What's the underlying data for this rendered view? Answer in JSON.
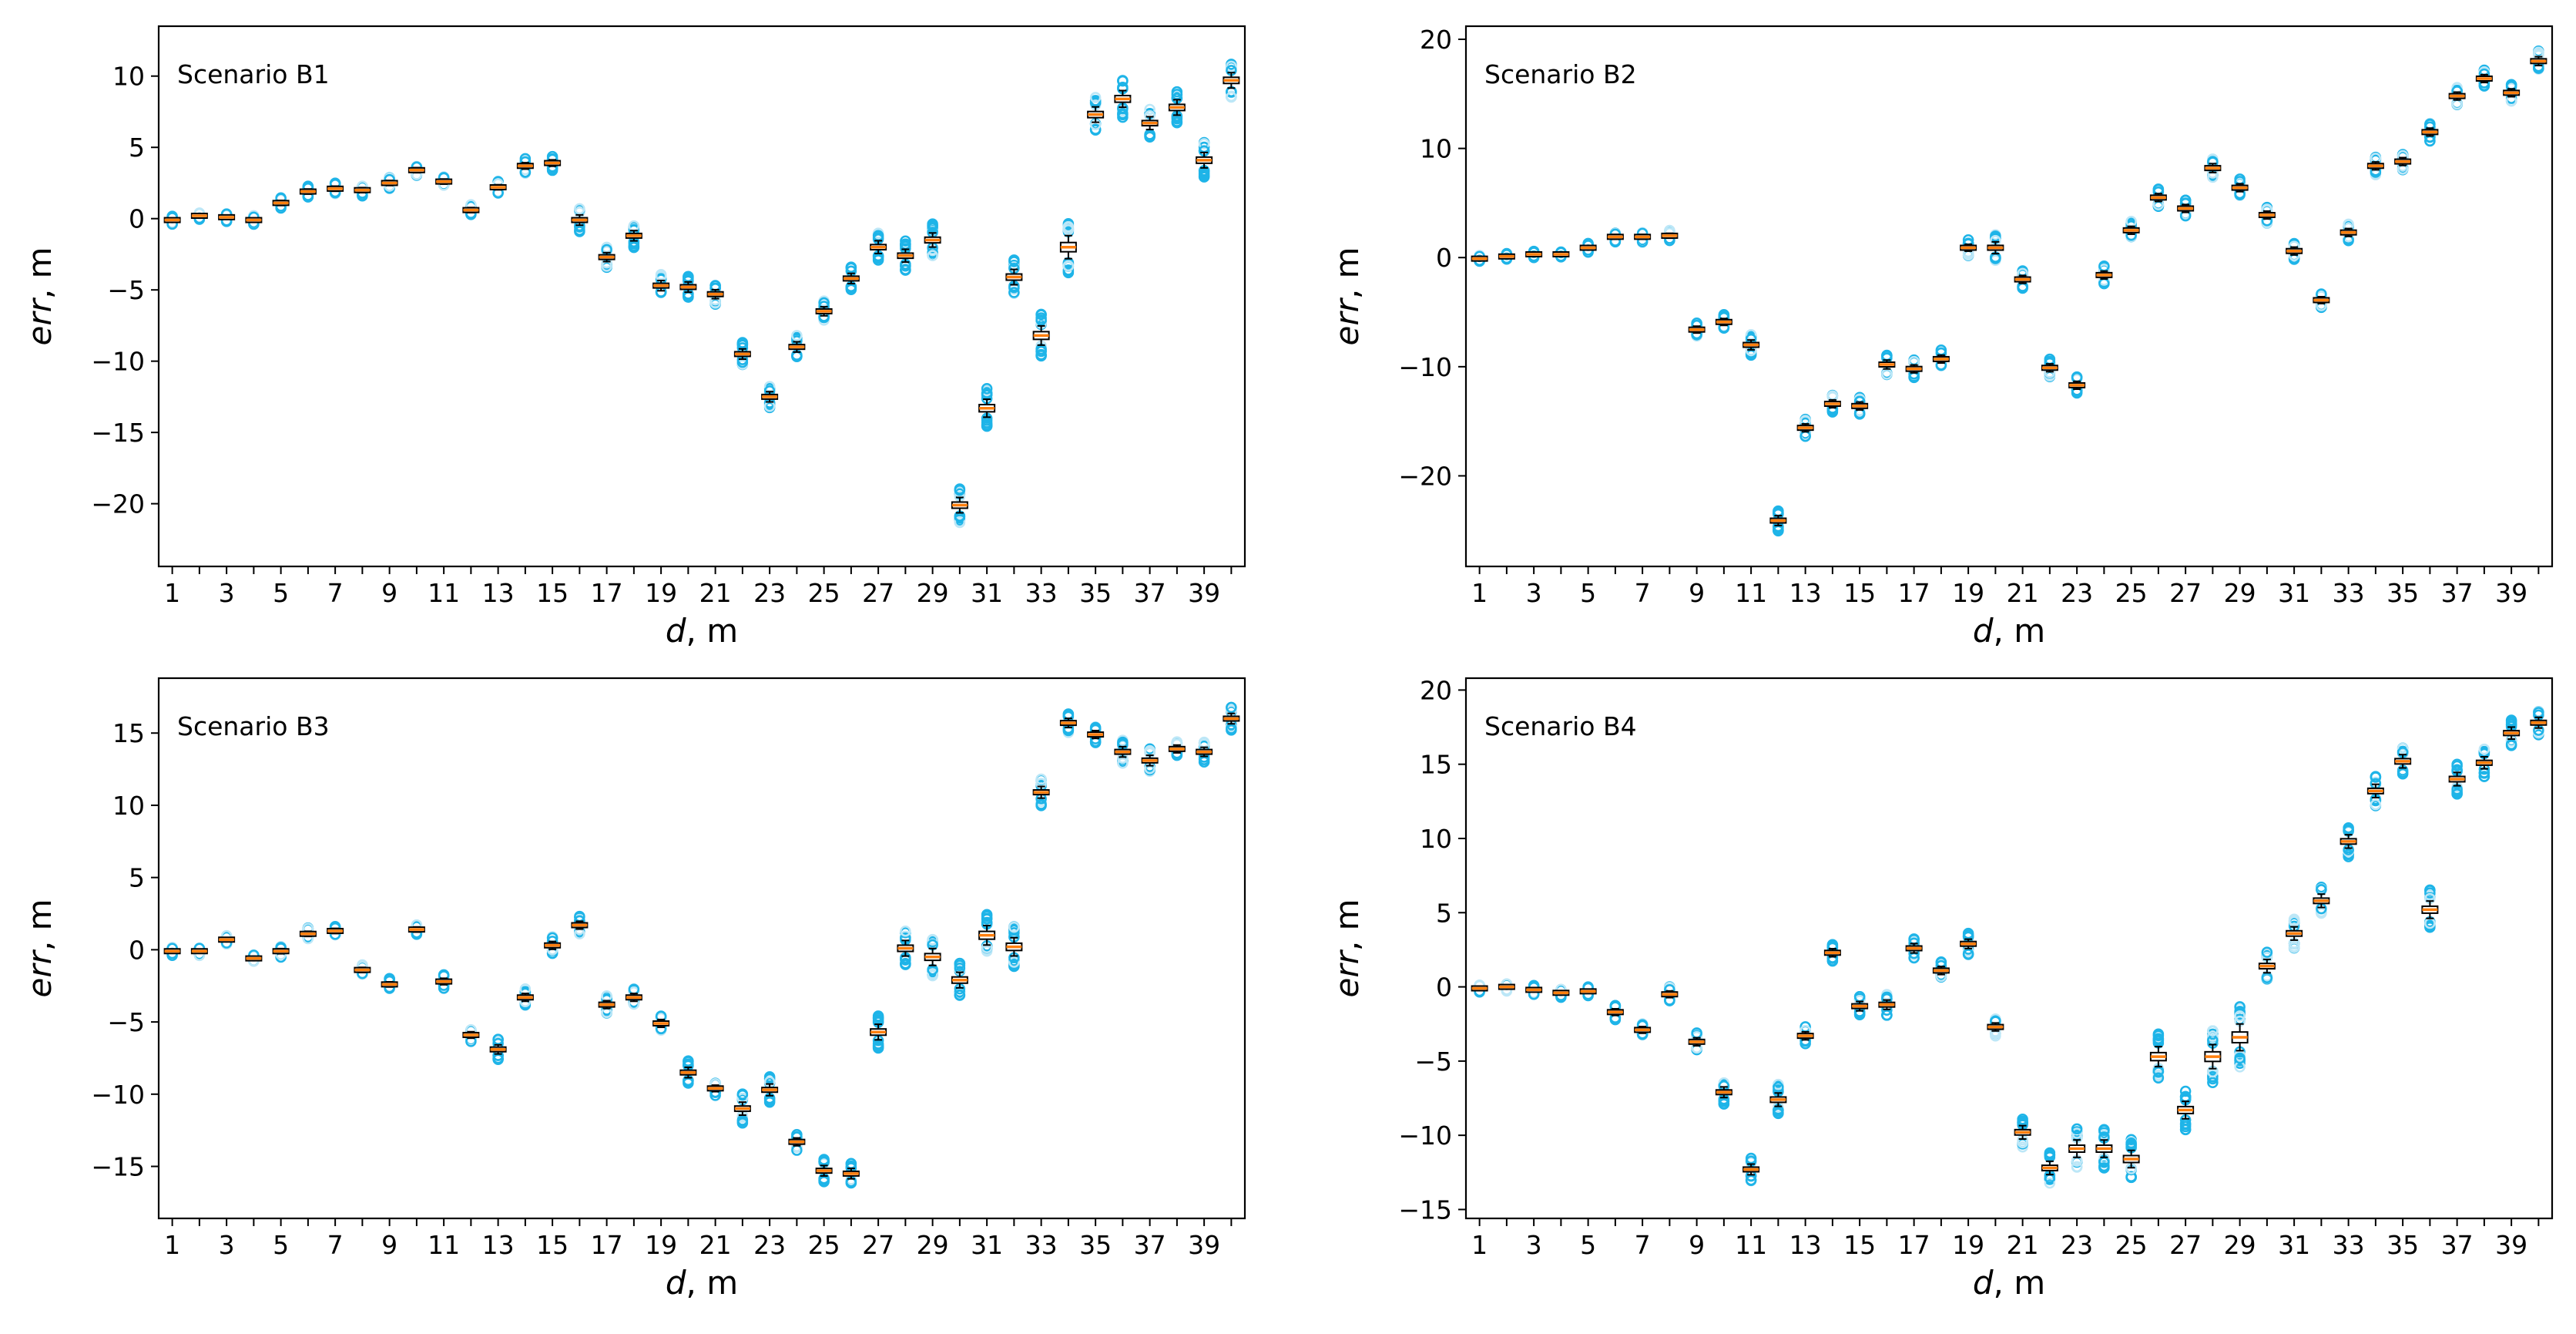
{
  "chart_data": [
    {
      "type": "box",
      "title": "Scenario B1",
      "xlabel_var": "d",
      "xlabel_unit": ", m",
      "ylabel_var": "err",
      "ylabel_unit": ", m",
      "xlim": [
        0.5,
        40.5
      ],
      "ylim": [
        -24.4,
        13.5
      ],
      "yticks": [
        10,
        5,
        0,
        -5,
        -10,
        -15,
        -20
      ],
      "xticks": [
        1,
        3,
        5,
        7,
        9,
        11,
        13,
        15,
        17,
        19,
        21,
        23,
        25,
        27,
        29,
        31,
        33,
        35,
        37,
        39
      ],
      "medians": [
        -0.1,
        0.2,
        0.1,
        -0.1,
        1.1,
        1.9,
        2.1,
        2.0,
        2.5,
        3.4,
        2.6,
        0.6,
        2.2,
        3.7,
        3.9,
        -0.1,
        -2.7,
        -1.2,
        -4.7,
        -4.8,
        -5.3,
        -9.5,
        -12.5,
        -9.0,
        -6.5,
        -4.2,
        -2.0,
        -2.6,
        -1.5,
        -20.1,
        -13.3,
        -4.1,
        -8.2,
        -2.0,
        7.3,
        8.4,
        6.7,
        7.8,
        4.1,
        9.7
      ],
      "spreads": [
        0.3,
        0.3,
        0.3,
        0.3,
        0.4,
        0.4,
        0.4,
        0.4,
        0.4,
        0.4,
        0.4,
        0.4,
        0.4,
        0.5,
        0.5,
        0.8,
        0.7,
        0.8,
        0.8,
        0.8,
        0.7,
        0.8,
        0.8,
        0.8,
        0.7,
        0.8,
        1.0,
        1.0,
        1.1,
        1.2,
        1.4,
        1.2,
        1.5,
        1.8,
        1.2,
        1.3,
        1.0,
        1.2,
        1.2,
        1.2
      ]
    },
    {
      "type": "box",
      "title": "Scenario B2",
      "xlabel_var": "d",
      "xlabel_unit": ", m",
      "ylabel_var": "err",
      "ylabel_unit": ", m",
      "xlim": [
        0.5,
        40.5
      ],
      "ylim": [
        -28.3,
        21.2
      ],
      "yticks": [
        20,
        10,
        0,
        -10,
        -20
      ],
      "xticks": [
        1,
        3,
        5,
        7,
        9,
        11,
        13,
        15,
        17,
        19,
        21,
        23,
        25,
        27,
        29,
        31,
        33,
        35,
        37,
        39
      ],
      "medians": [
        -0.1,
        0.1,
        0.3,
        0.3,
        0.9,
        1.9,
        1.9,
        2.0,
        -6.6,
        -5.9,
        -8.0,
        -24.1,
        -15.6,
        -13.4,
        -13.6,
        -9.8,
        -10.2,
        -9.3,
        0.9,
        0.9,
        -2.0,
        -10.1,
        -11.7,
        -1.6,
        2.5,
        5.5,
        4.5,
        8.2,
        6.4,
        3.9,
        0.6,
        -3.9,
        2.3,
        8.4,
        8.8,
        11.5,
        14.8,
        16.4,
        15.1,
        18.0
      ],
      "spreads": [
        0.3,
        0.3,
        0.3,
        0.3,
        0.4,
        0.5,
        0.5,
        0.5,
        0.7,
        0.7,
        1.0,
        1.0,
        0.8,
        0.8,
        0.8,
        0.9,
        0.8,
        0.8,
        0.7,
        1.2,
        0.8,
        0.8,
        0.8,
        0.8,
        0.8,
        0.8,
        0.8,
        0.9,
        0.8,
        0.8,
        0.8,
        0.7,
        0.8,
        0.8,
        0.8,
        0.8,
        0.8,
        0.8,
        0.8,
        0.9
      ]
    },
    {
      "type": "box",
      "title": "Scenario B3",
      "xlabel_var": "d",
      "xlabel_unit": ", m",
      "ylabel_var": "err",
      "ylabel_unit": ", m",
      "xlim": [
        0.5,
        40.5
      ],
      "ylim": [
        -18.6,
        18.8
      ],
      "yticks": [
        15,
        10,
        5,
        0,
        -5,
        -10,
        -15
      ],
      "xticks": [
        1,
        3,
        5,
        7,
        9,
        11,
        13,
        15,
        17,
        19,
        21,
        23,
        25,
        27,
        29,
        31,
        33,
        35,
        37,
        39
      ],
      "medians": [
        -0.1,
        -0.1,
        0.7,
        -0.6,
        -0.1,
        1.1,
        1.3,
        -1.4,
        -2.4,
        1.4,
        -2.2,
        -5.9,
        -6.9,
        -3.3,
        0.3,
        1.7,
        -3.8,
        -3.3,
        -5.1,
        -8.5,
        -9.6,
        -11.0,
        -9.7,
        -13.3,
        -15.3,
        -15.5,
        -5.7,
        0.1,
        -0.5,
        -2.1,
        1.0,
        0.2,
        10.9,
        15.7,
        14.9,
        13.7,
        13.1,
        13.9,
        13.7,
        16.0
      ],
      "spreads": [
        0.3,
        0.3,
        0.3,
        0.3,
        0.4,
        0.4,
        0.4,
        0.4,
        0.4,
        0.4,
        0.5,
        0.5,
        0.7,
        0.6,
        0.6,
        0.6,
        0.6,
        0.6,
        0.6,
        0.8,
        0.5,
        1.0,
        0.9,
        0.6,
        0.8,
        0.8,
        1.2,
        1.2,
        1.3,
        1.2,
        1.5,
        1.4,
        0.9,
        0.7,
        0.6,
        0.8,
        0.8,
        0.6,
        0.7,
        0.8
      ]
    },
    {
      "type": "box",
      "title": "Scenario B4",
      "xlabel_var": "d",
      "xlabel_unit": ", m",
      "ylabel_var": "err",
      "ylabel_unit": ", m",
      "xlim": [
        0.5,
        40.5
      ],
      "ylim": [
        -15.6,
        20.8
      ],
      "yticks": [
        20,
        15,
        10,
        5,
        0,
        -5,
        -10,
        -15
      ],
      "xticks": [
        1,
        3,
        5,
        7,
        9,
        11,
        13,
        15,
        17,
        19,
        21,
        23,
        25,
        27,
        29,
        31,
        33,
        35,
        37,
        39
      ],
      "medians": [
        -0.1,
        0.0,
        -0.2,
        -0.4,
        -0.3,
        -1.7,
        -2.9,
        -0.5,
        -3.7,
        -7.1,
        -12.3,
        -7.6,
        -3.3,
        2.3,
        -1.3,
        -1.2,
        2.6,
        1.1,
        2.9,
        -2.7,
        -9.8,
        -12.2,
        -10.9,
        -10.9,
        -11.6,
        -4.7,
        -8.3,
        -4.7,
        -3.4,
        1.4,
        3.6,
        5.8,
        9.8,
        13.2,
        15.2,
        5.2,
        14.0,
        15.1,
        17.1,
        17.8
      ],
      "spreads": [
        0.3,
        0.3,
        0.3,
        0.3,
        0.3,
        0.5,
        0.5,
        0.5,
        0.6,
        0.8,
        0.8,
        1.0,
        0.6,
        0.6,
        0.7,
        0.7,
        0.7,
        0.6,
        0.7,
        0.6,
        1.0,
        1.0,
        1.3,
        1.3,
        1.3,
        1.5,
        1.3,
        1.8,
        2.0,
        1.0,
        1.0,
        1.0,
        1.0,
        1.0,
        1.0,
        1.3,
        1.0,
        0.9,
        0.9,
        0.8
      ]
    }
  ],
  "colors": {
    "box_edge": "#000000",
    "median": "#ff7f0e",
    "outlier": "#1eb4e8",
    "outlier_light": "#bde7f7",
    "frame": "#000000",
    "background": "#ffffff"
  }
}
